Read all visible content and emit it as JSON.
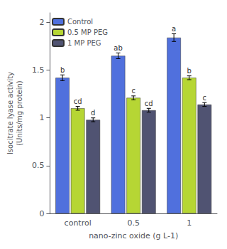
{
  "chart_data": {
    "type": "bar",
    "xlabel": "nano-zinc oxide (g L-1)",
    "ylabel": "Isocitrate lyase activity\n(Units/mg protein)",
    "categories": [
      "control",
      "0.5",
      "1"
    ],
    "series": [
      {
        "name": "Control",
        "values": [
          1.42,
          1.65,
          1.84
        ],
        "errors": [
          0.03,
          0.03,
          0.04
        ],
        "annotations": [
          "b",
          "ab",
          "a"
        ]
      },
      {
        "name": "0.5 MP PEG",
        "values": [
          1.1,
          1.21,
          1.42
        ],
        "errors": [
          0.02,
          0.02,
          0.02
        ],
        "annotations": [
          "cd",
          "c",
          "b"
        ]
      },
      {
        "name": "1 MP PEG",
        "values": [
          0.98,
          1.08,
          1.14
        ],
        "errors": [
          0.02,
          0.02,
          0.02
        ],
        "annotations": [
          "d",
          "cd",
          "c"
        ]
      }
    ],
    "ylim": [
      0,
      2.1
    ],
    "yticks": [
      0,
      0.5,
      1,
      1.5,
      2
    ],
    "grid": false,
    "legend": "upper left"
  }
}
